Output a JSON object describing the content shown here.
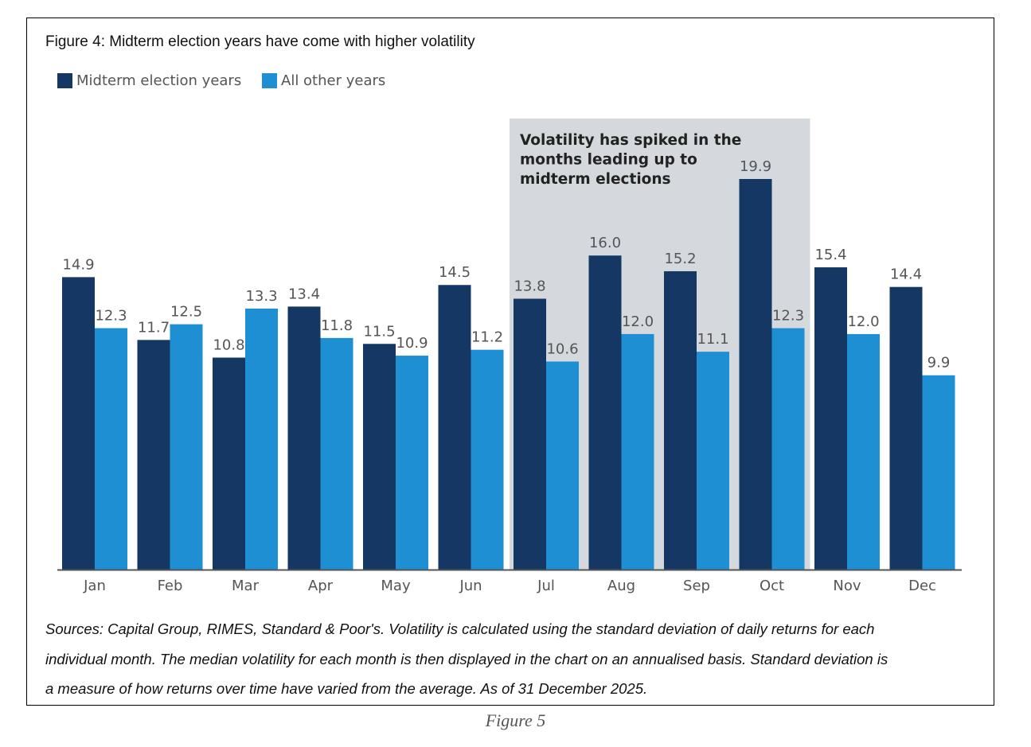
{
  "figure_caption": "Figure 5",
  "chart_data": {
    "type": "bar",
    "title": "Figure 4: Midterm election years have come with higher volatility",
    "categories": [
      "Jan",
      "Feb",
      "Mar",
      "Apr",
      "May",
      "Jun",
      "Jul",
      "Aug",
      "Sep",
      "Oct",
      "Nov",
      "Dec"
    ],
    "series": [
      {
        "name": "Midterm election years",
        "color": "#143763",
        "values": [
          14.9,
          11.7,
          10.8,
          13.4,
          11.5,
          14.5,
          13.8,
          16.0,
          15.2,
          19.9,
          15.4,
          14.4
        ]
      },
      {
        "name": "All other years",
        "color": "#1f8fd4",
        "values": [
          12.3,
          12.5,
          13.3,
          11.8,
          10.9,
          11.2,
          10.6,
          12.0,
          11.1,
          12.3,
          12.0,
          9.9
        ]
      }
    ],
    "ylim": [
      0,
      20
    ],
    "grid": false,
    "legend": "top-left",
    "highlight": {
      "from": "Jul",
      "to": "Oct",
      "color": "#d5d8dc",
      "annotation": [
        "Volatility has spiked in the",
        "months leading up to",
        "midterm elections"
      ]
    },
    "notes": [
      "Sources: Capital Group, RIMES, Standard & Poor's. Volatility is calculated using the standard deviation of daily returns for each",
      "individual month. The median volatility for each month is then displayed in the chart on an annualised basis. Standard deviation is",
      "a measure of how returns over time have varied from the average. As of 31 December 2025."
    ]
  }
}
